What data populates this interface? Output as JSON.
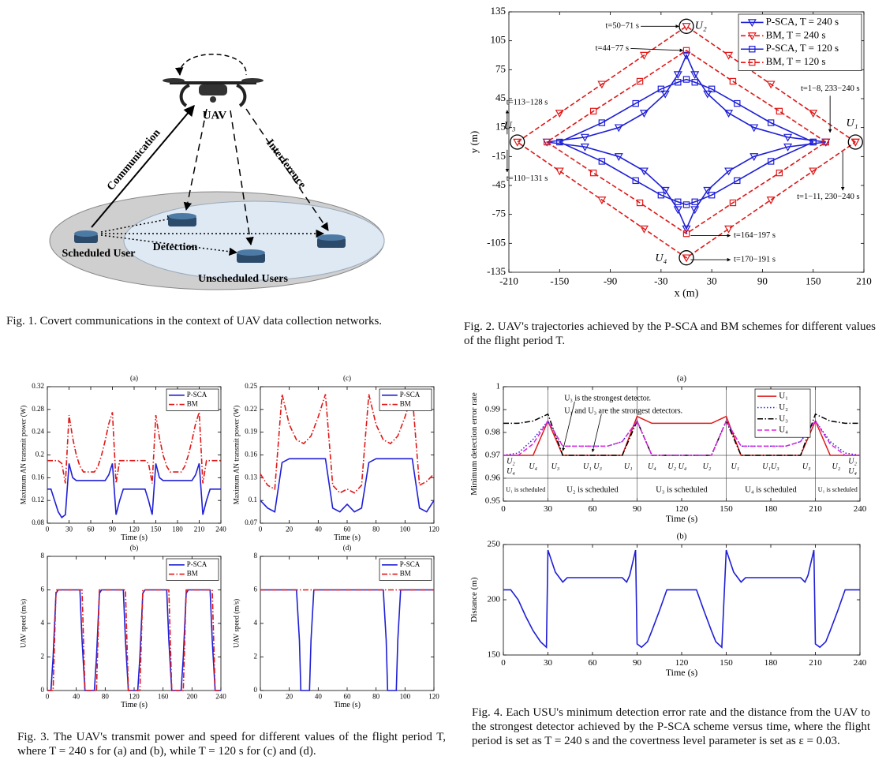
{
  "figure1": {
    "uav": "UAV",
    "communication": "Communication",
    "interference": "Interference",
    "detection": "Detection",
    "scheduled_user": "Scheduled User",
    "unscheduled_users": "Unscheduled Users"
  },
  "captions": [
    "Fig. 1.   Covert communications in the context of UAV data collection networks.",
    "Fig. 2.   UAV's trajectories achieved by the P-SCA and BM schemes for different values of the flight period T.",
    "Fig. 3.   The UAV's transmit power and speed for different values of the flight period T, where T = 240 s for (a) and (b), while T = 120 s for (c) and (d).",
    "Fig. 4.   Each USU's minimum detection error rate and the distance from the UAV to the strongest detector achieved by the P-SCA scheme versus time, where the flight period is set as T = 240 s and the covertness level parameter is set as ε = 0.03."
  ],
  "chart_data": [
    {
      "type": "line",
      "xlabel": "x (m)",
      "ylabel": "y (m)",
      "xlim": [
        -210,
        210
      ],
      "xticks": [
        -210,
        -150,
        -90,
        -30,
        30,
        90,
        150,
        210
      ],
      "ylim": [
        -135,
        135
      ],
      "yticks": [
        -135,
        -105,
        -75,
        -45,
        -15,
        15,
        45,
        75,
        105,
        135
      ],
      "legend": "upper right",
      "series": [
        {
          "name": "P-SCA, T = 240 s",
          "color": "#1f1fd6",
          "dash": "solid",
          "marker": "triangle-down",
          "x": [
            165,
            120,
            80,
            50,
            25,
            10,
            0,
            -10,
            -25,
            -50,
            -80,
            -120,
            -165,
            -120,
            -80,
            -50,
            -25,
            -10,
            0,
            10,
            25,
            50,
            80,
            120,
            165
          ],
          "values": [
            0,
            5,
            15,
            30,
            50,
            70,
            90,
            70,
            50,
            30,
            15,
            5,
            0,
            -5,
            -15,
            -30,
            -50,
            -70,
            -90,
            -70,
            -50,
            -30,
            -15,
            -5,
            0
          ]
        },
        {
          "name": "BM, T = 240 s",
          "color": "#e01818",
          "dash": "dashed",
          "marker": "triangle-down",
          "x": [
            200,
            150,
            100,
            50,
            0,
            -50,
            -100,
            -150,
            -200,
            -150,
            -100,
            -50,
            0,
            50,
            100,
            150,
            200
          ],
          "values": [
            0,
            30,
            60,
            90,
            120,
            90,
            60,
            30,
            0,
            -30,
            -60,
            -90,
            -120,
            -90,
            -60,
            -30,
            0
          ]
        },
        {
          "name": "P-SCA, T = 120 s",
          "color": "#1f1fd6",
          "dash": "solid",
          "marker": "square",
          "x": [
            150,
            100,
            60,
            30,
            10,
            0,
            -10,
            -30,
            -60,
            -100,
            -150,
            -100,
            -60,
            -30,
            -10,
            0,
            10,
            30,
            60,
            100,
            150
          ],
          "values": [
            0,
            20,
            40,
            55,
            62,
            65,
            62,
            55,
            40,
            20,
            0,
            -20,
            -40,
            -55,
            -62,
            -65,
            -62,
            -55,
            -40,
            -20,
            0
          ]
        },
        {
          "name": "BM, T = 120 s",
          "color": "#e01818",
          "dash": "dashed",
          "marker": "square",
          "x": [
            165,
            110,
            55,
            0,
            -55,
            -110,
            -165,
            -110,
            -55,
            0,
            55,
            110,
            165
          ],
          "values": [
            0,
            32,
            63,
            95,
            63,
            32,
            0,
            -32,
            -63,
            -95,
            -63,
            -32,
            0
          ]
        }
      ],
      "user_labels": [
        "U₁",
        "U₂",
        "U₃",
        "U₄"
      ],
      "annotations": [
        "t=50−71 s",
        "t=44−77 s",
        "t=1−8, 233−240 s",
        "t=113−128 s",
        "t=110−131 s",
        "t=1−11, 230−240 s",
        "t=164−197 s",
        "t=170−191 s"
      ]
    },
    {
      "type": "line",
      "title": "(a)",
      "xlabel": "Time (s)",
      "ylabel": "Maximum AN transmit power (W)",
      "xlim": [
        0,
        240
      ],
      "xticks": [
        0,
        30,
        60,
        90,
        120,
        150,
        180,
        210,
        240
      ],
      "ylim": [
        0.08,
        0.32
      ],
      "yticks": [
        0.08,
        0.12,
        0.16,
        0.2,
        0.24,
        0.28,
        0.32
      ],
      "legend": "upper right",
      "x": [
        0,
        5,
        10,
        15,
        20,
        25,
        30,
        35,
        40,
        45,
        50,
        55,
        60,
        65,
        70,
        75,
        80,
        85,
        90,
        95,
        100,
        105,
        110,
        115,
        120,
        125,
        130,
        135,
        140,
        145,
        150,
        155,
        160,
        165,
        170,
        175,
        180,
        185,
        190,
        195,
        200,
        205,
        210,
        215,
        220,
        225,
        230,
        235,
        240
      ],
      "series": [
        {
          "name": "P-SCA",
          "color": "#1f1fd6",
          "dash": "solid",
          "values": [
            0.14,
            0.14,
            0.12,
            0.1,
            0.09,
            0.095,
            0.185,
            0.16,
            0.155,
            0.155,
            0.155,
            0.155,
            0.155,
            0.155,
            0.155,
            0.155,
            0.155,
            0.165,
            0.185,
            0.095,
            0.12,
            0.14,
            0.14,
            0.14,
            0.14,
            0.14,
            0.14,
            0.14,
            0.12,
            0.095,
            0.185,
            0.16,
            0.155,
            0.155,
            0.155,
            0.155,
            0.155,
            0.155,
            0.155,
            0.155,
            0.155,
            0.165,
            0.185,
            0.095,
            0.12,
            0.14,
            0.14,
            0.14,
            0.14
          ]
        },
        {
          "name": "BM",
          "color": "#e01818",
          "dash": "dashdot",
          "values": [
            0.19,
            0.19,
            0.19,
            0.19,
            0.185,
            0.15,
            0.27,
            0.23,
            0.2,
            0.18,
            0.17,
            0.17,
            0.17,
            0.17,
            0.18,
            0.2,
            0.225,
            0.255,
            0.275,
            0.15,
            0.19,
            0.19,
            0.19,
            0.19,
            0.19,
            0.19,
            0.19,
            0.19,
            0.185,
            0.15,
            0.27,
            0.23,
            0.2,
            0.18,
            0.17,
            0.17,
            0.17,
            0.17,
            0.18,
            0.2,
            0.225,
            0.255,
            0.275,
            0.15,
            0.19,
            0.19,
            0.19,
            0.19,
            0.19
          ]
        }
      ]
    },
    {
      "type": "line",
      "title": "(c)",
      "xlabel": "Time (s)",
      "ylabel": "Maximum AN transmit power (W)",
      "xlim": [
        0,
        120
      ],
      "xticks": [
        0,
        20,
        40,
        60,
        80,
        100,
        120
      ],
      "ylim": [
        0.07,
        0.25
      ],
      "yticks": [
        0.07,
        0.1,
        0.13,
        0.16,
        0.19,
        0.22,
        0.25
      ],
      "legend": "upper right",
      "x": [
        0,
        5,
        10,
        15,
        20,
        25,
        30,
        35,
        40,
        45,
        50,
        55,
        60,
        65,
        70,
        75,
        80,
        85,
        90,
        95,
        100,
        105,
        110,
        115,
        120
      ],
      "series": [
        {
          "name": "P-SCA",
          "color": "#1f1fd6",
          "dash": "solid",
          "values": [
            0.1,
            0.09,
            0.085,
            0.15,
            0.155,
            0.155,
            0.155,
            0.155,
            0.155,
            0.155,
            0.09,
            0.085,
            0.095,
            0.085,
            0.09,
            0.15,
            0.155,
            0.155,
            0.155,
            0.155,
            0.155,
            0.155,
            0.09,
            0.085,
            0.1
          ]
        },
        {
          "name": "BM",
          "color": "#e01818",
          "dash": "dashdot",
          "values": [
            0.135,
            0.12,
            0.115,
            0.24,
            0.2,
            0.18,
            0.175,
            0.185,
            0.21,
            0.24,
            0.12,
            0.11,
            0.115,
            0.11,
            0.12,
            0.24,
            0.2,
            0.18,
            0.175,
            0.185,
            0.21,
            0.24,
            0.12,
            0.125,
            0.135
          ]
        }
      ]
    },
    {
      "type": "line",
      "title": "(b)",
      "xlabel": "Time (s)",
      "ylabel": "UAV speed (m/s)",
      "xlim": [
        0,
        240
      ],
      "xticks": [
        0,
        40,
        80,
        120,
        160,
        200,
        240
      ],
      "ylim": [
        0,
        8
      ],
      "yticks": [
        0,
        2,
        4,
        6,
        8
      ],
      "legend": "upper right",
      "x": [
        0,
        5,
        8,
        12,
        15,
        30,
        45,
        48,
        52,
        55,
        60,
        65,
        68,
        72,
        75,
        90,
        105,
        108,
        112,
        115,
        120,
        125,
        128,
        132,
        135,
        150,
        165,
        168,
        172,
        175,
        180,
        185,
        188,
        192,
        195,
        210,
        225,
        228,
        232,
        235,
        240
      ],
      "series": [
        {
          "name": "P-SCA",
          "color": "#1f1fd6",
          "dash": "solid",
          "values": [
            0,
            0,
            2,
            5.8,
            6,
            6,
            6,
            3,
            0,
            0,
            0,
            0,
            2,
            5.8,
            6,
            6,
            6,
            3,
            0,
            0,
            0,
            0,
            2,
            5.8,
            6,
            6,
            6,
            3,
            0,
            0,
            0,
            0,
            2,
            5.8,
            6,
            6,
            6,
            3,
            0,
            0,
            0
          ]
        },
        {
          "name": "BM",
          "color": "#e01818",
          "dash": "dashdot",
          "values": [
            0,
            0,
            0,
            6,
            6,
            6,
            6,
            6,
            0,
            0,
            0,
            0,
            0,
            6,
            6,
            6,
            6,
            6,
            0,
            0,
            0,
            0,
            0,
            6,
            6,
            6,
            6,
            6,
            0,
            0,
            0,
            0,
            0,
            6,
            6,
            6,
            6,
            6,
            0,
            0,
            0
          ]
        }
      ]
    },
    {
      "type": "line",
      "title": "(d)",
      "xlabel": "Time (s)",
      "ylabel": "UAV speed (m/s)",
      "xlim": [
        0,
        120
      ],
      "xticks": [
        0,
        20,
        40,
        60,
        80,
        100,
        120
      ],
      "ylim": [
        0,
        8
      ],
      "yticks": [
        0,
        2,
        4,
        6,
        8
      ],
      "legend": "upper right",
      "x": [
        0,
        20,
        25,
        27,
        28,
        34,
        35,
        37,
        40,
        60,
        80,
        85,
        87,
        88,
        94,
        95,
        97,
        100,
        120
      ],
      "series": [
        {
          "name": "P-SCA",
          "color": "#1f1fd6",
          "dash": "solid",
          "values": [
            6,
            6,
            6,
            3,
            0,
            0,
            3,
            6,
            6,
            6,
            6,
            6,
            3,
            0,
            0,
            3,
            6,
            6,
            6
          ]
        },
        {
          "name": "BM",
          "color": "#e01818",
          "dash": "dashdot",
          "values": [
            6,
            6,
            6,
            6,
            6,
            6,
            6,
            6,
            6,
            6,
            6,
            6,
            6,
            6,
            6,
            6,
            6,
            6,
            6
          ]
        }
      ]
    },
    {
      "type": "line",
      "title": "(a)",
      "xlabel": "Time (s)",
      "ylabel": "Minimum detection error rate",
      "xlim": [
        0,
        240
      ],
      "xticks": [
        0,
        30,
        60,
        90,
        120,
        150,
        180,
        210,
        240
      ],
      "ylim": [
        0.95,
        1
      ],
      "yticks": [
        0.95,
        0.96,
        0.97,
        0.98,
        0.99,
        1
      ],
      "legend": "upper right",
      "vlines": [
        30,
        90,
        150,
        210
      ],
      "hlines": [
        0.97,
        0.96
      ],
      "x": [
        0,
        10,
        20,
        30,
        40,
        50,
        70,
        80,
        90,
        100,
        120,
        140,
        150,
        160,
        170,
        190,
        200,
        210,
        220,
        230,
        240
      ],
      "series": [
        {
          "name": "U₁",
          "color": "#e01818",
          "dash": "solid",
          "values": [
            0.97,
            0.97,
            0.97,
            0.985,
            0.97,
            0.97,
            0.97,
            0.97,
            0.987,
            0.984,
            0.984,
            0.984,
            0.987,
            0.97,
            0.97,
            0.97,
            0.97,
            0.985,
            0.97,
            0.97,
            0.97
          ]
        },
        {
          "name": "U₂",
          "color": "#1f1fd6",
          "dash": "dotted",
          "values": [
            0.97,
            0.971,
            0.977,
            0.985,
            0.974,
            0.974,
            0.974,
            0.976,
            0.985,
            0.97,
            0.97,
            0.97,
            0.985,
            0.974,
            0.974,
            0.974,
            0.976,
            0.985,
            0.976,
            0.971,
            0.97
          ]
        },
        {
          "name": "U₃",
          "color": "#000000",
          "dash": "dashdot",
          "values": [
            0.984,
            0.984,
            0.985,
            0.988,
            0.97,
            0.97,
            0.97,
            0.97,
            0.985,
            0.97,
            0.97,
            0.97,
            0.985,
            0.97,
            0.97,
            0.97,
            0.97,
            0.988,
            0.985,
            0.984,
            0.984
          ]
        },
        {
          "name": "U₄",
          "color": "#e020e0",
          "dash": "dashed",
          "values": [
            0.97,
            0.97,
            0.975,
            0.985,
            0.974,
            0.974,
            0.974,
            0.976,
            0.985,
            0.97,
            0.97,
            0.97,
            0.985,
            0.974,
            0.974,
            0.974,
            0.976,
            0.985,
            0.975,
            0.97,
            0.97
          ]
        }
      ],
      "annotations": [
        "U₃ is the strongest detector.",
        "U₁ and U₃ are the strongest detectors."
      ],
      "band_labels": [
        "U₂",
        "U₄",
        "U₄",
        "U₃",
        "U₁ U₃",
        "U₁",
        "U₄",
        "U₂ U₄",
        "U₂",
        "U₁",
        "U₁U₃",
        "U₃",
        "U₂",
        "U₂",
        "U₄"
      ],
      "schedule_labels": [
        "U₁ is scheduled",
        "U₂ is scheduled",
        "U₃ is scheduled",
        "U₄ is scheduled",
        "U₁ is scheduled"
      ]
    },
    {
      "type": "line",
      "title": "(b)",
      "xlabel": "Time (s)",
      "ylabel": "Distance (m)",
      "xlim": [
        0,
        240
      ],
      "xticks": [
        0,
        30,
        60,
        90,
        120,
        150,
        180,
        210,
        240
      ],
      "ylim": [
        150,
        250
      ],
      "yticks": [
        150,
        200,
        250
      ],
      "x": [
        0,
        5,
        10,
        15,
        20,
        25,
        29,
        30,
        35,
        40,
        43,
        45,
        80,
        83,
        85,
        89,
        90,
        93,
        97,
        100,
        105,
        110,
        130,
        135,
        140,
        143,
        147,
        150,
        155,
        160,
        163,
        165,
        200,
        203,
        205,
        209,
        210,
        213,
        217,
        220,
        225,
        230,
        240
      ],
      "series": [
        {
          "color": "#1f1fd6",
          "dash": "solid",
          "values": [
            209,
            209,
            200,
            185,
            172,
            162,
            157,
            245,
            225,
            216,
            220,
            220,
            220,
            216,
            222,
            245,
            160,
            157,
            162,
            172,
            190,
            209,
            209,
            190,
            172,
            162,
            157,
            245,
            225,
            216,
            220,
            220,
            220,
            216,
            222,
            245,
            160,
            157,
            162,
            172,
            190,
            209,
            209
          ]
        }
      ]
    }
  ]
}
